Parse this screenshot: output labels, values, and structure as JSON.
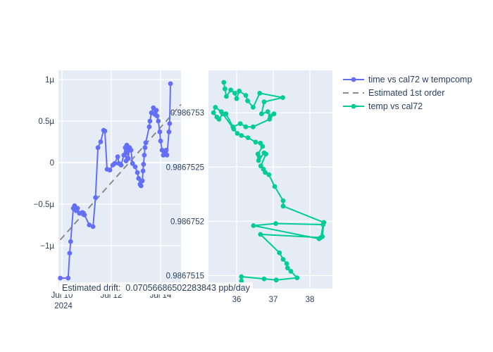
{
  "style": {
    "figure_bg": "#ffffff",
    "plot_bg": "#e5ecf6",
    "grid_color": "#ffffff",
    "text_color": "#2a3f5f",
    "series_blue": "#636efa",
    "series_green": "#00cc96",
    "trend_gray": "#8b8b8b"
  },
  "legend": {
    "items": [
      {
        "label": "time vs cal72 w tempcomp",
        "color": "#636efa",
        "dash": false,
        "marker": true
      },
      {
        "label": "Estimated 1st order",
        "color": "#8b8b8b",
        "dash": true,
        "marker": false
      },
      {
        "label": "temp vs cal72",
        "color": "#00cc96",
        "dash": false,
        "marker": true
      }
    ]
  },
  "annotation": {
    "text": "Estimated drift:  0.07056686502283843 ppb/day",
    "estimated_drift_ppb_per_day": 0.07056686502283843
  },
  "chart_data": [
    {
      "type": "scatter",
      "name": "time vs cal72 w tempcomp",
      "mode": "lines+markers",
      "color": "#636efa",
      "x_unit": "date, July 2024 (day of month)",
      "y_unit": "µ (micro, relative)",
      "x": [
        9.93,
        10.25,
        10.31,
        10.35,
        10.46,
        10.51,
        10.57,
        10.63,
        10.71,
        10.83,
        10.91,
        11.11,
        11.26,
        11.36,
        11.46,
        11.57,
        11.69,
        11.74,
        11.83,
        11.94,
        12.06,
        12.14,
        12.26,
        12.31,
        12.4,
        12.51,
        12.57,
        12.6,
        12.63,
        12.66,
        12.69,
        12.74,
        12.8,
        12.86,
        12.97,
        13.06,
        13.11,
        13.17,
        13.21,
        13.26,
        13.29,
        13.31,
        13.34,
        13.37,
        13.4,
        13.54,
        13.57,
        13.63,
        13.71,
        13.77,
        13.83,
        13.86,
        13.91,
        13.97,
        14.0,
        14.06,
        14.11,
        14.17,
        14.23,
        14.26,
        14.34,
        14.37,
        14.4
      ],
      "y": [
        -1.39,
        -1.39,
        -1.09,
        -0.95,
        -0.55,
        -0.52,
        -0.58,
        -0.55,
        -0.61,
        -0.6,
        -0.63,
        -0.75,
        -0.77,
        -0.42,
        0.18,
        0.25,
        0.39,
        0.38,
        -0.08,
        -0.09,
        -0.03,
        -0.01,
        0.07,
        -0.01,
        -0.03,
        0.09,
        0.18,
        0.02,
        0.21,
        0.14,
        0.05,
        0.18,
        0.15,
        -0.01,
        -0.05,
        -0.12,
        -0.19,
        -0.26,
        -0.28,
        -0.22,
        -0.1,
        -0.02,
        0.09,
        0.18,
        0.24,
        0.43,
        0.5,
        0.6,
        0.66,
        0.58,
        0.63,
        0.56,
        0.5,
        0.37,
        0.26,
        0.15,
        0.09,
        0.12,
        0.15,
        0.09,
        0.37,
        0.47,
        0.95
      ],
      "xticks": {
        "values": [
          10,
          12,
          14
        ],
        "labels": [
          "Jul 10",
          "Jul 12",
          "Jul 14"
        ],
        "sub_label": "2024"
      },
      "yticks": {
        "values": [
          1,
          0.5,
          0,
          -0.5,
          -1
        ],
        "labels": [
          "1µ",
          "0.5µ",
          "0",
          "−0.5µ",
          "−1µ"
        ]
      },
      "xlim": [
        9.857,
        14.829
      ],
      "ylim": [
        -1.517,
        1.11
      ],
      "grid": true,
      "legend_position": "top-right-outside"
    },
    {
      "type": "line",
      "name": "Estimated 1st order",
      "mode": "lines",
      "dash": true,
      "color": "#8b8b8b",
      "x": [
        9.93,
        14.83
      ],
      "y": [
        -0.93,
        0.7
      ]
    },
    {
      "type": "scatter",
      "name": "temp vs cal72",
      "mode": "lines+markers",
      "color": "#00cc96",
      "x_unit": "temperature",
      "x": [
        35.65,
        35.68,
        35.72,
        35.84,
        35.95,
        36.0,
        36.07,
        36.25,
        36.3,
        36.45,
        36.63,
        37.26,
        36.75,
        36.68,
        36.85,
        36.92,
        37.02,
        36.9,
        36.45,
        36.25,
        36.1,
        35.9,
        35.71,
        35.62,
        35.52,
        35.46,
        35.37,
        35.42,
        35.58,
        35.92,
        36.02,
        36.13,
        36.31,
        36.52,
        36.65,
        36.71,
        36.58,
        36.62,
        36.6,
        36.75,
        36.8,
        36.66,
        36.73,
        36.78,
        36.88,
        37.04,
        37.27,
        37.27,
        38.38,
        38.34,
        38.25,
        36.46,
        37.07,
        38.36,
        38.3,
        36.65,
        37.17,
        37.27,
        37.37,
        37.39,
        37.48,
        37.65,
        37.08,
        36.75,
        36.13,
        36.13
      ],
      "y": [
        0.98675328,
        0.98675322,
        0.98675315,
        0.98675321,
        0.98675318,
        0.98675313,
        0.9867532,
        0.98675316,
        0.98675311,
        0.98675305,
        0.98675318,
        0.98675314,
        0.9867531,
        0.98675299,
        0.98675301,
        0.98675297,
        0.98675299,
        0.98675294,
        0.98675287,
        0.98675287,
        0.9867529,
        0.98675287,
        0.98675299,
        0.98675299,
        0.98675294,
        0.98675296,
        0.986753,
        0.98675305,
        0.98675301,
        0.98675285,
        0.98675281,
        0.98675279,
        0.98675277,
        0.98675273,
        0.98675272,
        0.98675269,
        0.98675262,
        0.98675259,
        0.98675256,
        0.98675263,
        0.98675262,
        0.98675251,
        0.98675248,
        0.98675245,
        0.98675243,
        0.98675232,
        0.98675219,
        0.98675214,
        0.98675199,
        0.98675186,
        0.98675184,
        0.98675196,
        0.98675198,
        0.98675197,
        0.98675185,
        0.98675188,
        0.98675171,
        0.98675165,
        0.98675161,
        0.98675157,
        0.98675154,
        0.98675148,
        0.98675146,
        0.98675147,
        0.98675149,
        0.98675145
      ],
      "xticks": {
        "values": [
          36,
          37,
          38
        ],
        "labels": [
          "36",
          "37",
          "38"
        ]
      },
      "yticks": {
        "values": [
          0.986753,
          0.9867525,
          0.986752,
          0.9867515
        ],
        "labels": [
          "0.986753",
          "0.9867525",
          "0.986752",
          "0.9867515"
        ]
      },
      "xlim": [
        35.231,
        38.615
      ],
      "ylim": [
        0.98675138,
        0.98675339
      ],
      "grid": true
    }
  ]
}
